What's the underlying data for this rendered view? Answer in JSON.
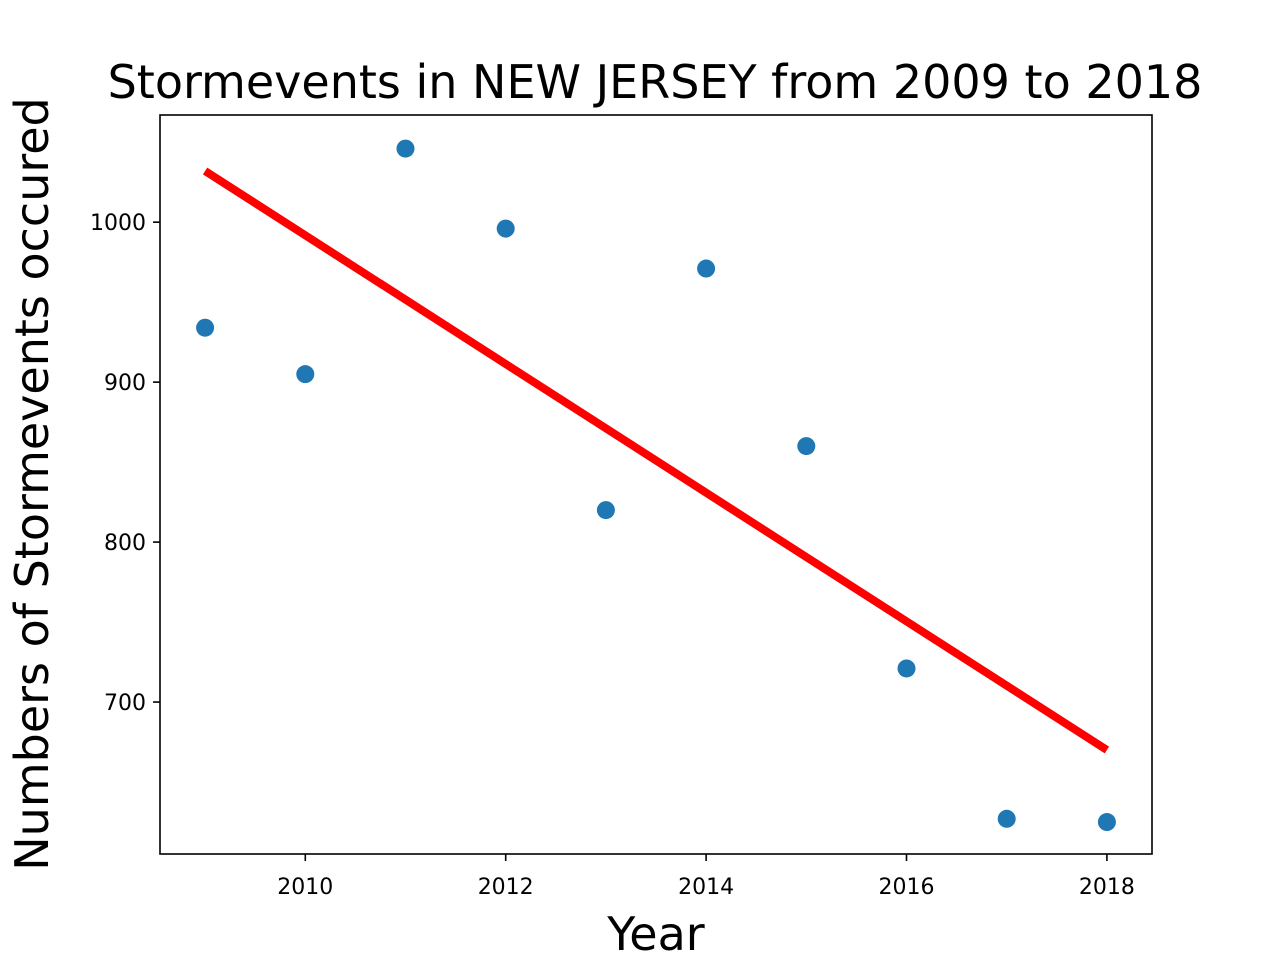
{
  "chart_data": {
    "type": "scatter",
    "title": "Stormevents in NEW JERSEY from 2009 to 2018",
    "xlabel": "Year",
    "ylabel": "Numbers of Stormevents occured",
    "xlim": [
      2008.55,
      2018.45
    ],
    "ylim": [
      605,
      1067
    ],
    "xticks": [
      2010,
      2012,
      2014,
      2016,
      2018
    ],
    "yticks": [
      700,
      800,
      900,
      1000
    ],
    "grid": false,
    "legend": "none",
    "series": [
      {
        "type": "scatter",
        "color": "#1f77b4",
        "x": [
          2009,
          2010,
          2011,
          2012,
          2013,
          2014,
          2015,
          2016,
          2017,
          2018
        ],
        "y": [
          934,
          905,
          1046,
          996,
          820,
          971,
          860,
          721,
          627,
          625
        ]
      },
      {
        "type": "line",
        "color": "#ff0000",
        "x": [
          2009,
          2018
        ],
        "y": [
          1032,
          670
        ]
      }
    ]
  }
}
